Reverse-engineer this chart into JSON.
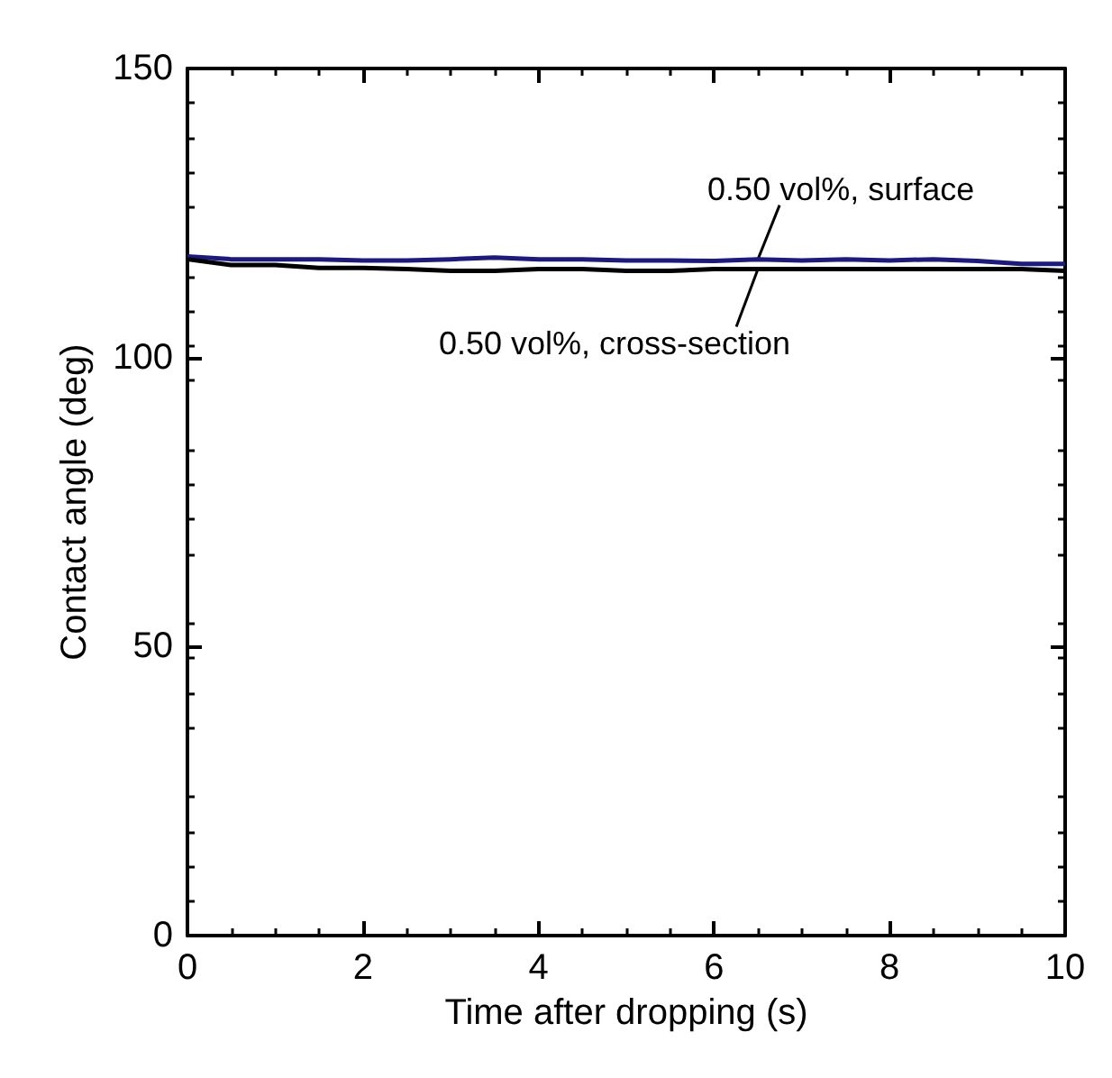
{
  "chart_data": {
    "type": "line",
    "xlabel": "Time after dropping (s)",
    "ylabel": "Contact angle (deg)",
    "x": [
      0,
      0.5,
      1,
      1.5,
      2,
      2.5,
      3,
      3.5,
      4,
      4.5,
      5,
      5.5,
      6,
      6.5,
      7,
      7.5,
      8,
      8.5,
      9,
      9.5,
      10
    ],
    "series": [
      {
        "name": "0.50 vol%, surface",
        "color": "#1a1a80",
        "values": [
          117.5,
          117,
          117,
          117,
          116.8,
          116.8,
          117,
          117.3,
          117,
          117,
          116.8,
          116.8,
          116.7,
          117,
          116.8,
          117,
          116.8,
          117,
          116.7,
          116.2,
          116.2
        ]
      },
      {
        "name": "0.50 vol%, cross-section",
        "color": "#000000",
        "values": [
          117,
          116,
          116,
          115.5,
          115.5,
          115.3,
          115,
          115,
          115.3,
          115.3,
          115,
          115,
          115.3,
          115.3,
          115.3,
          115.3,
          115.3,
          115.3,
          115.3,
          115.3,
          115
        ]
      }
    ],
    "xlim": [
      0,
      10
    ],
    "xticks": [
      0,
      2,
      4,
      6,
      8,
      10
    ],
    "ylim": [
      0,
      150
    ],
    "yticks": [
      0,
      50,
      100,
      150
    ],
    "grid": false,
    "marker": "none",
    "line_style": "solid"
  }
}
